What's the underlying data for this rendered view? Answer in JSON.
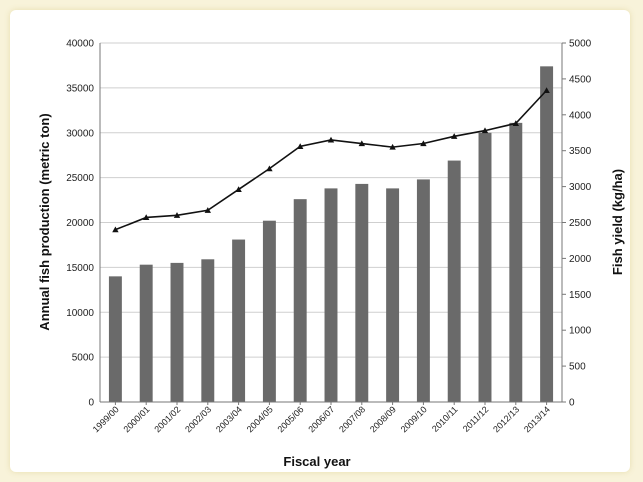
{
  "chart_data": {
    "type": "bar+line",
    "title": "",
    "xlabel": "Fiscal year",
    "ylabel_left": "Annual fish production (metric ton)",
    "ylabel_right": "Fish yield (kg/ha)",
    "categories": [
      "1999/00",
      "2000/01",
      "2001/02",
      "2002/03",
      "2003/04",
      "2004/05",
      "2005/06",
      "2006/07",
      "2007/08",
      "2008/09",
      "2009/10",
      "2010/11",
      "2011/12",
      "2012/13",
      "2013/14"
    ],
    "ylim_left": [
      0,
      40000
    ],
    "yticks_left": [
      "0",
      "5000",
      "10000",
      "15000",
      "20000",
      "25000",
      "30000",
      "35000",
      "40000"
    ],
    "ylim_right": [
      0,
      5000
    ],
    "yticks_right": [
      "0",
      "500",
      "1000",
      "1500",
      "2000",
      "2500",
      "3000",
      "3500",
      "4000",
      "4500",
      "5000"
    ],
    "grid": true,
    "series": [
      {
        "type": "bar",
        "axis": "left",
        "color": "#6a6a6a",
        "values": [
          14000,
          15300,
          15500,
          15900,
          18100,
          20200,
          22600,
          23800,
          24300,
          23800,
          24800,
          26900,
          30000,
          31100,
          37400
        ]
      },
      {
        "type": "line",
        "axis": "right",
        "color": "#111111",
        "values": [
          2400,
          2570,
          2600,
          2670,
          2960,
          3250,
          3560,
          3650,
          3600,
          3550,
          3600,
          3700,
          3780,
          3880,
          4340
        ]
      }
    ]
  }
}
